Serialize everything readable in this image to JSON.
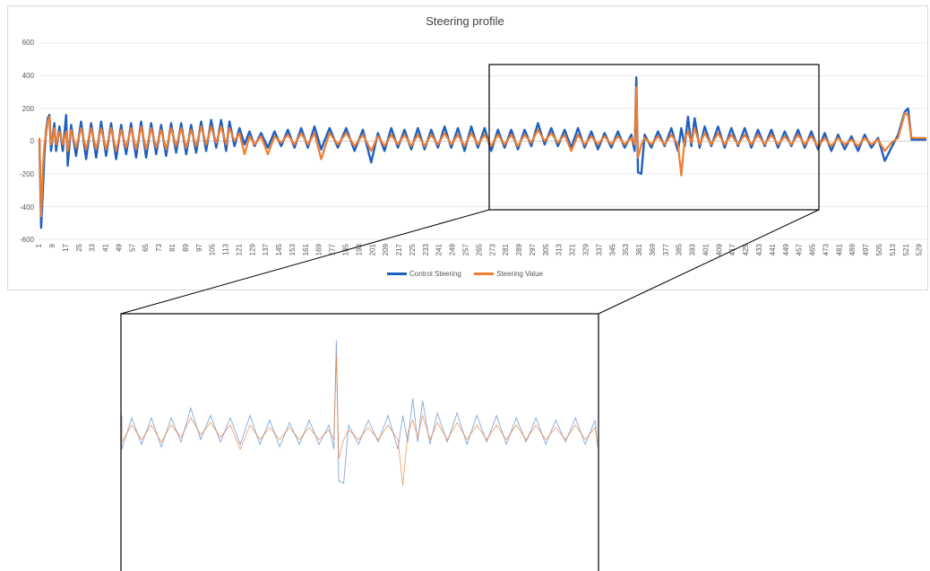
{
  "chart_data": {
    "type": "line",
    "title": "Steering profile",
    "ylim": [
      -600,
      600
    ],
    "yticks": [
      "600",
      "400",
      "200",
      "0",
      "-200",
      "-400",
      "-600"
    ],
    "xlim": [
      1,
      533
    ],
    "xticks": [
      1,
      9,
      17,
      25,
      33,
      41,
      49,
      57,
      65,
      73,
      81,
      89,
      97,
      105,
      113,
      121,
      129,
      137,
      145,
      153,
      161,
      169,
      177,
      185,
      193,
      201,
      209,
      217,
      225,
      233,
      241,
      249,
      257,
      265,
      273,
      281,
      289,
      297,
      305,
      313,
      321,
      329,
      337,
      345,
      353,
      361,
      369,
      377,
      385,
      393,
      401,
      409,
      417,
      425,
      433,
      441,
      449,
      457,
      465,
      473,
      481,
      489,
      497,
      505,
      513,
      521,
      529
    ],
    "grid": "horizontal",
    "legend_position": "bottom",
    "series": [
      {
        "name": "Control Steering",
        "color": "#1f5fbf",
        "points": [
          [
            1,
            10
          ],
          [
            2,
            -530
          ],
          [
            3,
            -320
          ],
          [
            4,
            -80
          ],
          [
            5,
            60
          ],
          [
            6,
            140
          ],
          [
            7,
            160
          ],
          [
            8,
            -60
          ],
          [
            9,
            30
          ],
          [
            10,
            110
          ],
          [
            11,
            -60
          ],
          [
            13,
            90
          ],
          [
            15,
            -60
          ],
          [
            17,
            160
          ],
          [
            18,
            -150
          ],
          [
            20,
            100
          ],
          [
            23,
            -90
          ],
          [
            26,
            120
          ],
          [
            29,
            -110
          ],
          [
            32,
            110
          ],
          [
            35,
            -100
          ],
          [
            38,
            120
          ],
          [
            41,
            -90
          ],
          [
            44,
            110
          ],
          [
            47,
            -110
          ],
          [
            50,
            100
          ],
          [
            53,
            -80
          ],
          [
            56,
            110
          ],
          [
            59,
            -100
          ],
          [
            62,
            120
          ],
          [
            65,
            -100
          ],
          [
            68,
            110
          ],
          [
            71,
            -80
          ],
          [
            74,
            100
          ],
          [
            77,
            -90
          ],
          [
            80,
            110
          ],
          [
            83,
            -70
          ],
          [
            86,
            110
          ],
          [
            89,
            -80
          ],
          [
            92,
            100
          ],
          [
            95,
            -70
          ],
          [
            98,
            120
          ],
          [
            101,
            -60
          ],
          [
            104,
            130
          ],
          [
            107,
            -40
          ],
          [
            110,
            130
          ],
          [
            113,
            -60
          ],
          [
            115,
            120
          ],
          [
            118,
            -30
          ],
          [
            121,
            80
          ],
          [
            124,
            -20
          ],
          [
            127,
            60
          ],
          [
            130,
            -30
          ],
          [
            134,
            50
          ],
          [
            138,
            -40
          ],
          [
            142,
            60
          ],
          [
            146,
            -30
          ],
          [
            150,
            70
          ],
          [
            154,
            -40
          ],
          [
            158,
            80
          ],
          [
            162,
            -40
          ],
          [
            166,
            90
          ],
          [
            170,
            -50
          ],
          [
            175,
            80
          ],
          [
            180,
            -40
          ],
          [
            185,
            80
          ],
          [
            190,
            -60
          ],
          [
            195,
            70
          ],
          [
            200,
            -130
          ],
          [
            204,
            50
          ],
          [
            208,
            -60
          ],
          [
            212,
            80
          ],
          [
            216,
            -40
          ],
          [
            220,
            70
          ],
          [
            224,
            -50
          ],
          [
            228,
            80
          ],
          [
            232,
            -50
          ],
          [
            236,
            70
          ],
          [
            240,
            -40
          ],
          [
            244,
            90
          ],
          [
            248,
            -40
          ],
          [
            252,
            80
          ],
          [
            256,
            -60
          ],
          [
            260,
            90
          ],
          [
            264,
            -40
          ],
          [
            268,
            80
          ],
          [
            272,
            -60
          ],
          [
            276,
            70
          ],
          [
            280,
            -40
          ],
          [
            284,
            70
          ],
          [
            288,
            -50
          ],
          [
            292,
            70
          ],
          [
            296,
            -30
          ],
          [
            300,
            110
          ],
          [
            304,
            -20
          ],
          [
            308,
            80
          ],
          [
            312,
            -30
          ],
          [
            316,
            70
          ],
          [
            320,
            -40
          ],
          [
            324,
            80
          ],
          [
            328,
            -40
          ],
          [
            332,
            60
          ],
          [
            336,
            -50
          ],
          [
            340,
            50
          ],
          [
            344,
            -40
          ],
          [
            348,
            60
          ],
          [
            352,
            -40
          ],
          [
            356,
            40
          ],
          [
            358,
            -60
          ],
          [
            359,
            390
          ],
          [
            360,
            -190
          ],
          [
            362,
            -200
          ],
          [
            364,
            40
          ],
          [
            368,
            -40
          ],
          [
            372,
            60
          ],
          [
            376,
            -30
          ],
          [
            380,
            80
          ],
          [
            384,
            -60
          ],
          [
            386,
            80
          ],
          [
            388,
            -30
          ],
          [
            390,
            150
          ],
          [
            392,
            -30
          ],
          [
            394,
            140
          ],
          [
            397,
            -40
          ],
          [
            400,
            90
          ],
          [
            404,
            -30
          ],
          [
            408,
            90
          ],
          [
            412,
            -40
          ],
          [
            416,
            80
          ],
          [
            420,
            -30
          ],
          [
            424,
            80
          ],
          [
            428,
            -40
          ],
          [
            432,
            70
          ],
          [
            436,
            -30
          ],
          [
            440,
            70
          ],
          [
            444,
            -40
          ],
          [
            448,
            60
          ],
          [
            452,
            -30
          ],
          [
            456,
            70
          ],
          [
            460,
            -40
          ],
          [
            464,
            60
          ],
          [
            468,
            -50
          ],
          [
            472,
            50
          ],
          [
            476,
            -60
          ],
          [
            480,
            40
          ],
          [
            484,
            -50
          ],
          [
            488,
            30
          ],
          [
            492,
            -60
          ],
          [
            496,
            40
          ],
          [
            500,
            -40
          ],
          [
            504,
            20
          ],
          [
            508,
            -120
          ],
          [
            512,
            -40
          ],
          [
            516,
            40
          ],
          [
            520,
            180
          ],
          [
            522,
            200
          ],
          [
            524,
            10
          ],
          [
            533,
            10
          ]
        ]
      },
      {
        "name": "Steering Value",
        "color": "#ed7d31",
        "points": [
          [
            1,
            20
          ],
          [
            2,
            -460
          ],
          [
            3,
            -180
          ],
          [
            4,
            -20
          ],
          [
            5,
            40
          ],
          [
            6,
            120
          ],
          [
            7,
            150
          ],
          [
            8,
            -20
          ],
          [
            9,
            20
          ],
          [
            10,
            80
          ],
          [
            11,
            -20
          ],
          [
            13,
            60
          ],
          [
            15,
            -20
          ],
          [
            17,
            60
          ],
          [
            18,
            -60
          ],
          [
            20,
            70
          ],
          [
            23,
            -40
          ],
          [
            26,
            80
          ],
          [
            29,
            -50
          ],
          [
            32,
            80
          ],
          [
            35,
            -50
          ],
          [
            38,
            80
          ],
          [
            41,
            -50
          ],
          [
            44,
            80
          ],
          [
            47,
            -60
          ],
          [
            50,
            70
          ],
          [
            53,
            -40
          ],
          [
            56,
            80
          ],
          [
            59,
            -50
          ],
          [
            62,
            90
          ],
          [
            65,
            -50
          ],
          [
            68,
            80
          ],
          [
            71,
            -40
          ],
          [
            74,
            70
          ],
          [
            77,
            -50
          ],
          [
            80,
            80
          ],
          [
            83,
            -30
          ],
          [
            86,
            80
          ],
          [
            89,
            -40
          ],
          [
            92,
            70
          ],
          [
            95,
            -30
          ],
          [
            98,
            90
          ],
          [
            101,
            -20
          ],
          [
            104,
            90
          ],
          [
            107,
            -10
          ],
          [
            110,
            90
          ],
          [
            113,
            -20
          ],
          [
            115,
            80
          ],
          [
            118,
            0
          ],
          [
            121,
            50
          ],
          [
            124,
            -80
          ],
          [
            127,
            30
          ],
          [
            130,
            -20
          ],
          [
            134,
            30
          ],
          [
            138,
            -80
          ],
          [
            142,
            30
          ],
          [
            146,
            -10
          ],
          [
            150,
            40
          ],
          [
            154,
            -20
          ],
          [
            158,
            50
          ],
          [
            162,
            -20
          ],
          [
            166,
            50
          ],
          [
            170,
            -110
          ],
          [
            175,
            50
          ],
          [
            180,
            -20
          ],
          [
            185,
            50
          ],
          [
            190,
            -30
          ],
          [
            195,
            40
          ],
          [
            200,
            -60
          ],
          [
            204,
            30
          ],
          [
            208,
            -30
          ],
          [
            212,
            40
          ],
          [
            216,
            -20
          ],
          [
            220,
            40
          ],
          [
            224,
            -30
          ],
          [
            228,
            40
          ],
          [
            232,
            -30
          ],
          [
            236,
            40
          ],
          [
            240,
            -20
          ],
          [
            244,
            50
          ],
          [
            248,
            -20
          ],
          [
            252,
            40
          ],
          [
            256,
            -30
          ],
          [
            260,
            50
          ],
          [
            264,
            -20
          ],
          [
            268,
            40
          ],
          [
            272,
            -30
          ],
          [
            276,
            40
          ],
          [
            280,
            -20
          ],
          [
            284,
            40
          ],
          [
            288,
            -30
          ],
          [
            292,
            40
          ],
          [
            296,
            -10
          ],
          [
            300,
            70
          ],
          [
            304,
            0
          ],
          [
            308,
            50
          ],
          [
            312,
            -10
          ],
          [
            316,
            40
          ],
          [
            320,
            -60
          ],
          [
            324,
            40
          ],
          [
            328,
            -20
          ],
          [
            332,
            30
          ],
          [
            336,
            -20
          ],
          [
            340,
            30
          ],
          [
            344,
            -20
          ],
          [
            348,
            30
          ],
          [
            352,
            -20
          ],
          [
            356,
            20
          ],
          [
            358,
            -20
          ],
          [
            359,
            330
          ],
          [
            360,
            -100
          ],
          [
            362,
            -20
          ],
          [
            364,
            20
          ],
          [
            368,
            -20
          ],
          [
            372,
            30
          ],
          [
            376,
            -20
          ],
          [
            380,
            40
          ],
          [
            384,
            -20
          ],
          [
            386,
            -210
          ],
          [
            388,
            10
          ],
          [
            390,
            60
          ],
          [
            392,
            -10
          ],
          [
            394,
            80
          ],
          [
            397,
            -20
          ],
          [
            400,
            50
          ],
          [
            404,
            -20
          ],
          [
            408,
            50
          ],
          [
            412,
            -20
          ],
          [
            416,
            40
          ],
          [
            420,
            -20
          ],
          [
            424,
            40
          ],
          [
            428,
            -20
          ],
          [
            432,
            40
          ],
          [
            436,
            -20
          ],
          [
            440,
            40
          ],
          [
            444,
            -20
          ],
          [
            448,
            30
          ],
          [
            452,
            -20
          ],
          [
            456,
            40
          ],
          [
            460,
            -20
          ],
          [
            464,
            30
          ],
          [
            468,
            -30
          ],
          [
            472,
            20
          ],
          [
            476,
            -30
          ],
          [
            480,
            20
          ],
          [
            484,
            -20
          ],
          [
            488,
            10
          ],
          [
            492,
            -30
          ],
          [
            496,
            20
          ],
          [
            500,
            -20
          ],
          [
            504,
            10
          ],
          [
            508,
            -60
          ],
          [
            512,
            -10
          ],
          [
            516,
            20
          ],
          [
            520,
            170
          ],
          [
            522,
            160
          ],
          [
            524,
            20
          ],
          [
            533,
            20
          ]
        ]
      }
    ]
  }
}
